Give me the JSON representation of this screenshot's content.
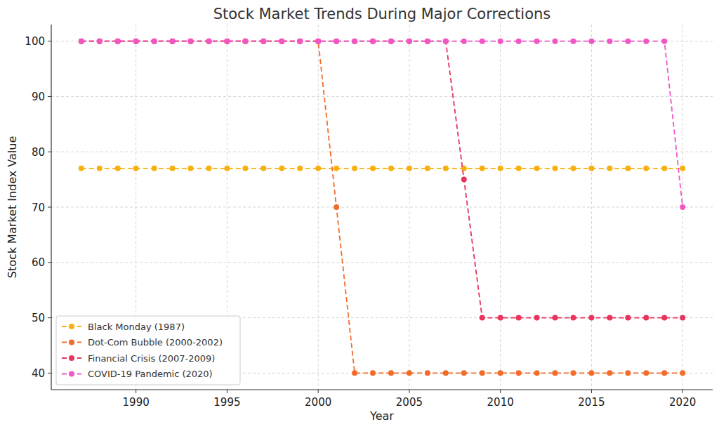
{
  "chart_data": {
    "type": "line",
    "title": "Stock Market Trends During Major Corrections",
    "x_label": "Year",
    "y_label": "Stock Market Index Value",
    "x": [
      1987,
      1988,
      1989,
      1990,
      1991,
      1992,
      1993,
      1994,
      1995,
      1996,
      1997,
      1998,
      1999,
      2000,
      2001,
      2002,
      2003,
      2004,
      2005,
      2006,
      2007,
      2008,
      2009,
      2010,
      2011,
      2012,
      2013,
      2014,
      2015,
      2016,
      2017,
      2018,
      2019,
      2020
    ],
    "series": [
      {
        "name": "Black Monday (1987)",
        "color": "#f7b10f",
        "marker": "circle",
        "line_style": "dashed",
        "values": [
          77,
          77,
          77,
          77,
          77,
          77,
          77,
          77,
          77,
          77,
          77,
          77,
          77,
          77,
          77,
          77,
          77,
          77,
          77,
          77,
          77,
          77,
          77,
          77,
          77,
          77,
          77,
          77,
          77,
          77,
          77,
          77,
          77,
          77
        ]
      },
      {
        "name": "Dot-Com Bubble (2000-2002)",
        "color": "#f26c2a",
        "marker": "circle",
        "line_style": "dashed",
        "values": [
          100,
          100,
          100,
          100,
          100,
          100,
          100,
          100,
          100,
          100,
          100,
          100,
          100,
          100,
          70,
          40,
          40,
          40,
          40,
          40,
          40,
          40,
          40,
          40,
          40,
          40,
          40,
          40,
          40,
          40,
          40,
          40,
          40,
          40
        ]
      },
      {
        "name": "Financial Crisis (2007-2009)",
        "color": "#e8345a",
        "marker": "circle",
        "line_style": "dashed",
        "values": [
          100,
          100,
          100,
          100,
          100,
          100,
          100,
          100,
          100,
          100,
          100,
          100,
          100,
          100,
          100,
          100,
          100,
          100,
          100,
          100,
          100,
          75,
          50,
          50,
          50,
          50,
          50,
          50,
          50,
          50,
          50,
          50,
          50,
          50
        ]
      },
      {
        "name": "COVID-19 Pandemic (2020)",
        "color": "#f256c6",
        "marker": "circle",
        "line_style": "dashed",
        "values": [
          100,
          100,
          100,
          100,
          100,
          100,
          100,
          100,
          100,
          100,
          100,
          100,
          100,
          100,
          100,
          100,
          100,
          100,
          100,
          100,
          100,
          100,
          100,
          100,
          100,
          100,
          100,
          100,
          100,
          100,
          100,
          100,
          100,
          70
        ]
      }
    ],
    "xlim": [
      1985.35,
      2021.65
    ],
    "ylim": [
      37,
      103
    ],
    "xticks": [
      1990,
      1995,
      2000,
      2005,
      2010,
      2015,
      2020
    ],
    "yticks": [
      40,
      50,
      60,
      70,
      80,
      90,
      100
    ],
    "grid": true,
    "legend": "lower left"
  }
}
